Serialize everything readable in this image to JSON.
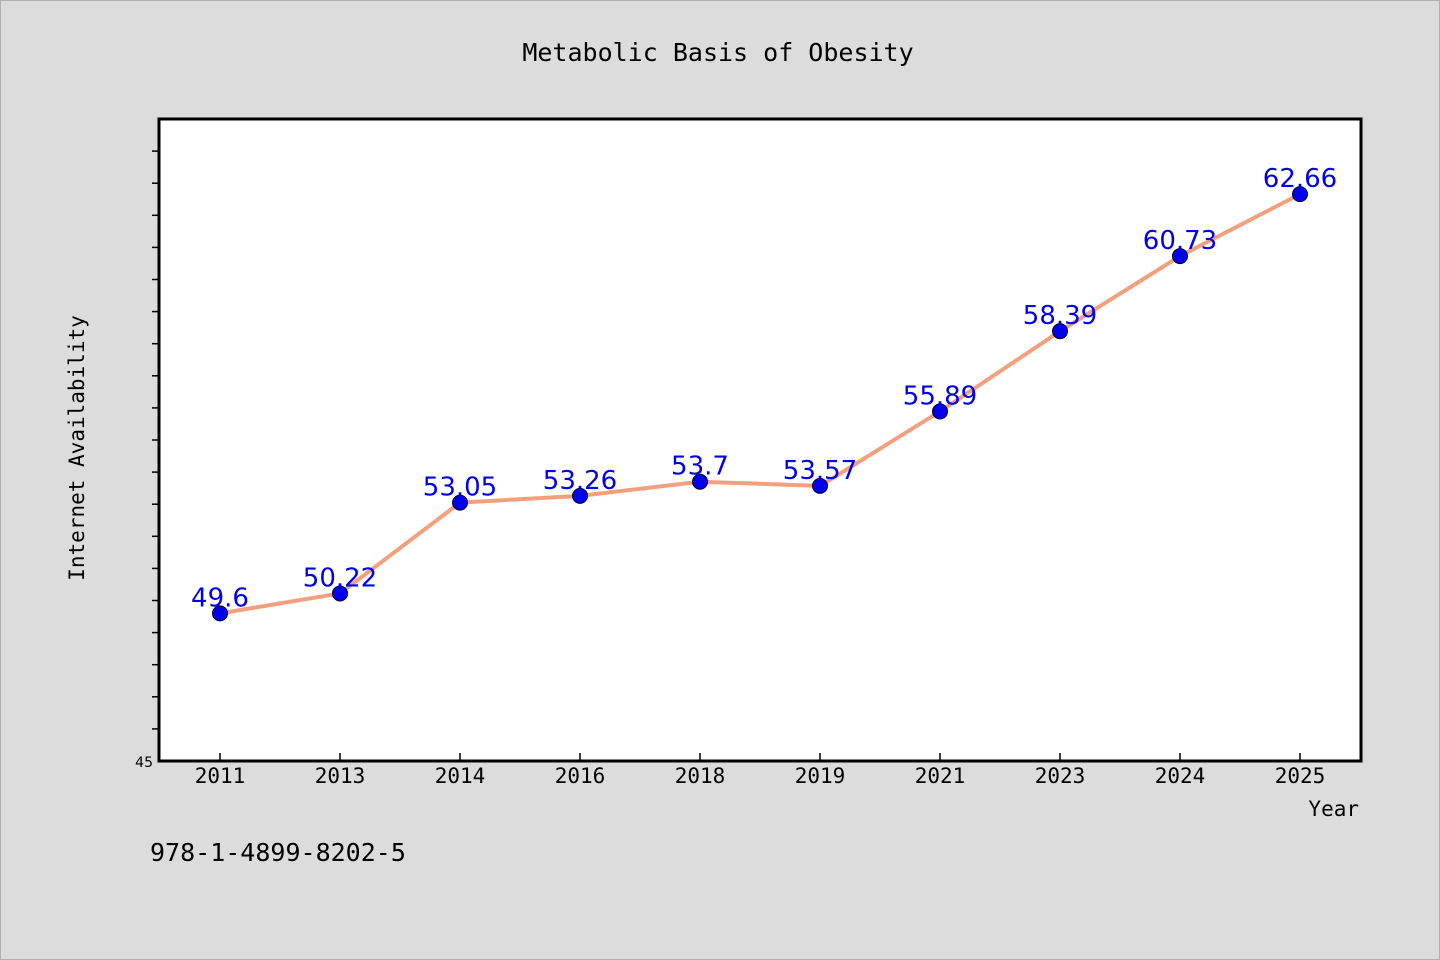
{
  "chart_data": {
    "type": "line",
    "title": "Metabolic Basis of Obesity",
    "xlabel": "Year",
    "ylabel": "Internet Availability",
    "categories": [
      "2011",
      "2013",
      "2014",
      "2016",
      "2018",
      "2019",
      "2021",
      "2023",
      "2024",
      "2025"
    ],
    "series": [
      {
        "values": [
          49.6,
          50.22,
          53.05,
          53.26,
          53.7,
          53.57,
          55.89,
          58.39,
          60.73,
          62.66
        ],
        "labels": [
          "49.6",
          "50.22",
          "53.05",
          "53.26",
          "53.7",
          "53.57",
          "55.89",
          "58.39",
          "60.73",
          "62.66"
        ]
      }
    ],
    "ylim": [
      45,
      65
    ],
    "y_tick_labels": [
      "45"
    ],
    "y_minor_tick_step": 1,
    "grid": false,
    "line_color": "#f4a07e",
    "marker_color": "#0000ee",
    "label_color": "#0000ee",
    "background_color": "#dcdcdc",
    "plot_background_color": "#ffffff"
  },
  "footer": {
    "isbn": "978-1-4899-8202-5"
  }
}
